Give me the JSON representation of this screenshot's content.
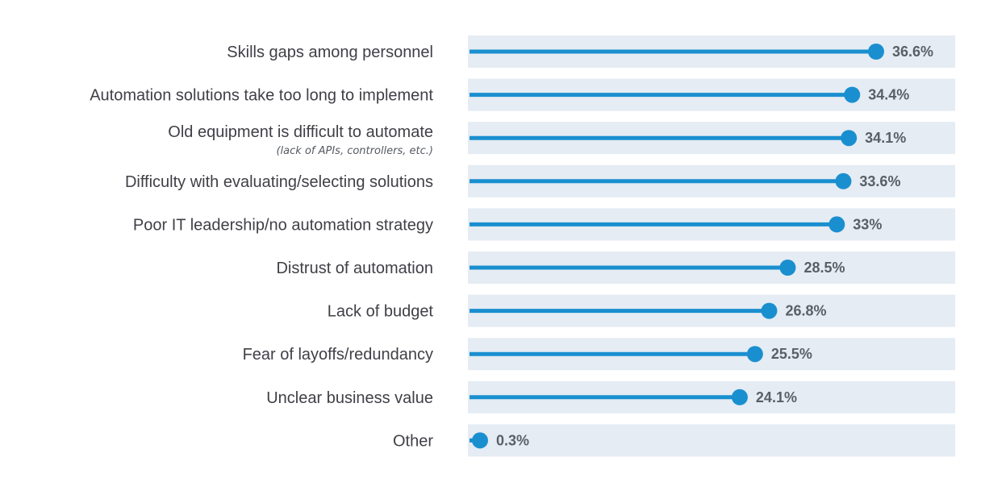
{
  "chart_data": {
    "type": "bar",
    "style": "lollipop",
    "orientation": "horizontal",
    "categories": [
      "Skills gaps among personnel",
      "Automation solutions take too long to implement",
      "Old equipment is difficult to automate",
      "Difficulty with evaluating/selecting solutions",
      "Poor IT leadership/no automation strategy",
      "Distrust of automation",
      "Lack of budget",
      "Fear of layoffs/redundancy",
      "Unclear business value",
      "Other"
    ],
    "sublabels": [
      "",
      "",
      "(lack of APIs, controllers, etc.)",
      "",
      "",
      "",
      "",
      "",
      "",
      ""
    ],
    "values": [
      36.6,
      34.4,
      34.1,
      33.6,
      33,
      28.5,
      26.8,
      25.5,
      24.1,
      0.3
    ],
    "value_labels": [
      "36.6%",
      "34.4%",
      "34.1%",
      "33.6%",
      "33%",
      "28.5%",
      "26.8%",
      "25.5%",
      "24.1%",
      "0.3%"
    ],
    "xlim": [
      0,
      40
    ],
    "grid": false,
    "legend": "none",
    "colors": {
      "line": "#1a8fd0",
      "band": "#e5ecf3",
      "label": "#3f3f46",
      "value": "#5a5f66"
    }
  }
}
